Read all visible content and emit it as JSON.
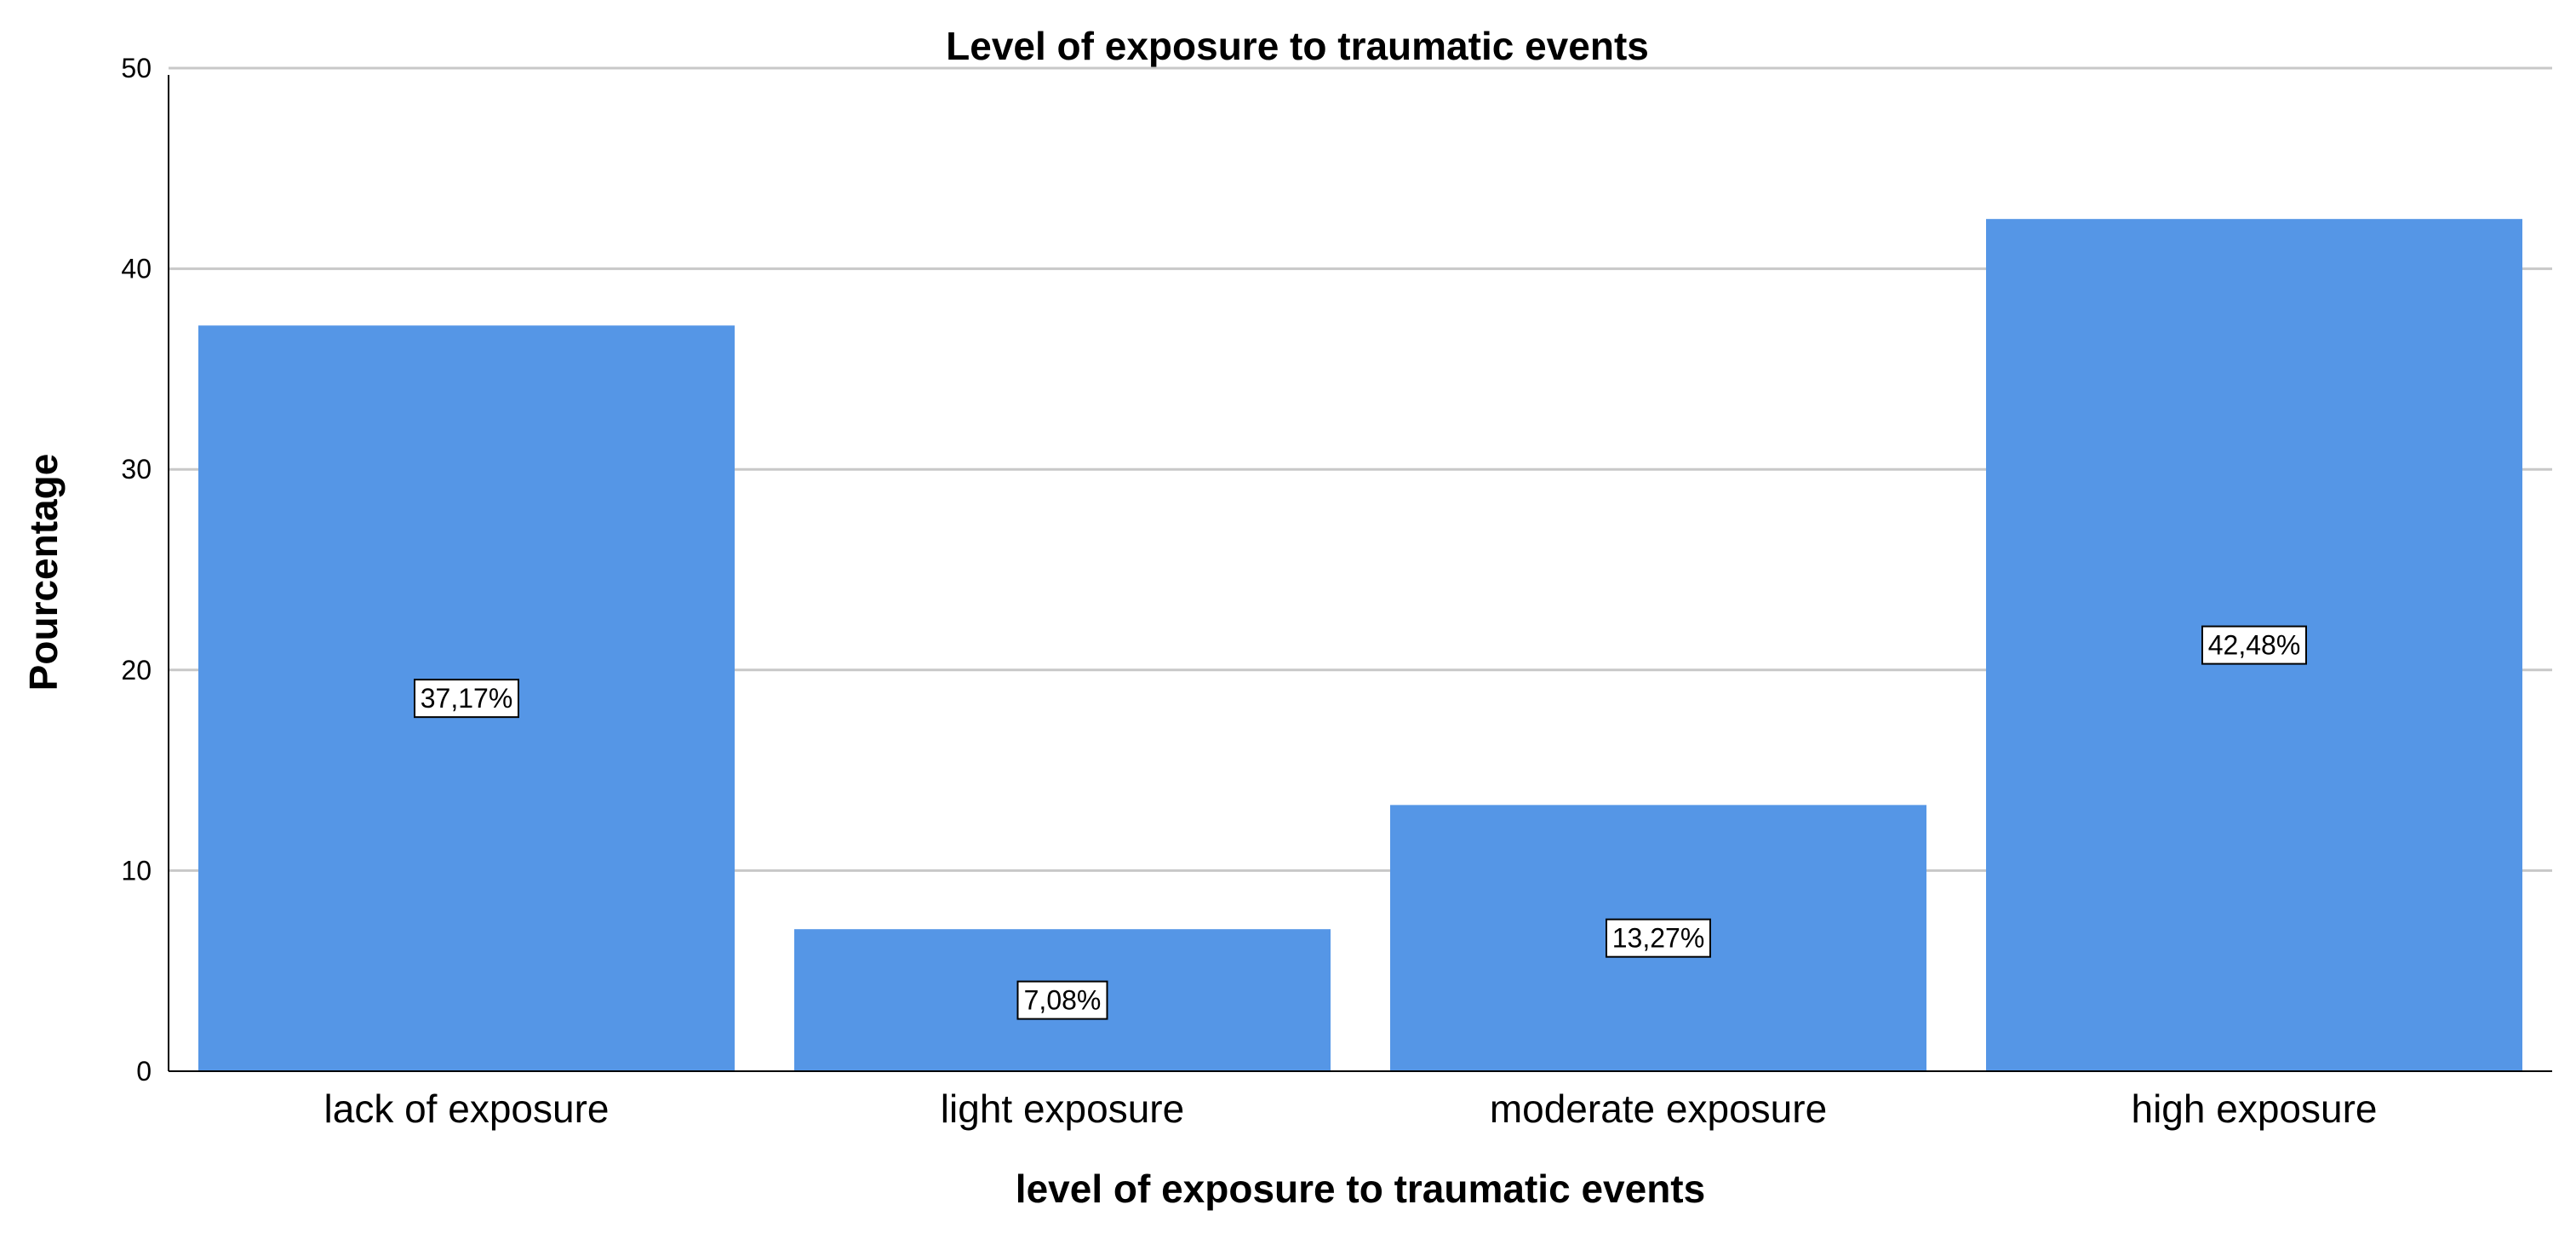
{
  "chart_data": {
    "type": "bar",
    "title": "Level of exposure to traumatic events",
    "xlabel": "level of exposure to traumatic events",
    "ylabel": "Pourcentage",
    "categories": [
      "lack of exposure",
      "light exposure",
      "moderate exposure",
      "high exposure"
    ],
    "values": [
      37.17,
      7.08,
      13.27,
      42.48
    ],
    "data_labels": [
      "37,17%",
      "7,08%",
      "13,27%",
      "42,48%"
    ],
    "ylim": [
      0,
      50
    ],
    "yticks": [
      "0",
      "10",
      "20",
      "30",
      "40",
      "50"
    ],
    "grid": true,
    "legend": "none",
    "bar_color": "#5596e6"
  }
}
